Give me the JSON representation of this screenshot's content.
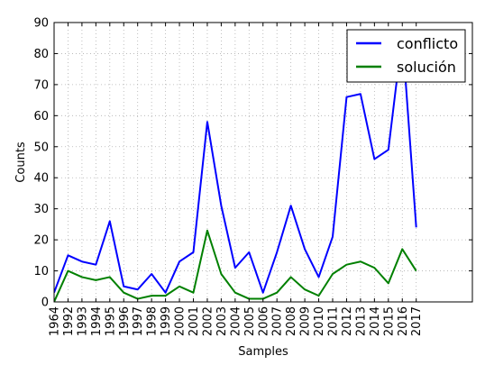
{
  "chart_data": {
    "type": "line",
    "title": "",
    "xlabel": "Samples",
    "ylabel": "Counts",
    "ylim": [
      0,
      90
    ],
    "yticks": [
      "0",
      "10",
      "20",
      "30",
      "40",
      "50",
      "60",
      "70",
      "80",
      "90"
    ],
    "grid": true,
    "legend": "top-right",
    "categories": [
      "1964",
      "1992",
      "1993",
      "1994",
      "1995",
      "1996",
      "1997",
      "1998",
      "1999",
      "2000",
      "2001",
      "2002",
      "2003",
      "2004",
      "2005",
      "2006",
      "2007",
      "2008",
      "2009",
      "2010",
      "2011",
      "2012",
      "2013",
      "2014",
      "2015",
      "2016",
      "2017"
    ],
    "series": [
      {
        "name": "conflicto",
        "color": "#0000ff",
        "values": [
          3,
          15,
          13,
          12,
          26,
          5,
          4,
          9,
          3,
          13,
          16,
          58,
          31,
          11,
          16,
          3,
          16,
          31,
          17,
          8,
          21,
          66,
          67,
          46,
          49,
          86,
          24
        ]
      },
      {
        "name": "solución",
        "color": "#008000",
        "values": [
          0,
          10,
          8,
          7,
          8,
          3,
          1,
          2,
          2,
          5,
          3,
          23,
          9,
          3,
          1,
          1,
          3,
          8,
          4,
          2,
          9,
          12,
          13,
          11,
          6,
          17,
          10
        ]
      }
    ]
  }
}
